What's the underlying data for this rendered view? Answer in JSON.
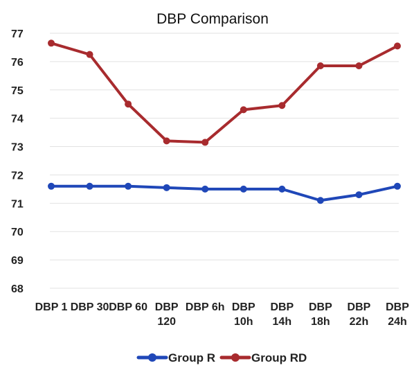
{
  "chart_data": {
    "type": "line",
    "title": "DBP Comparison",
    "xlabel": "",
    "ylabel": "",
    "ylim": [
      68,
      77
    ],
    "yticks": [
      68,
      69,
      70,
      71,
      72,
      73,
      74,
      75,
      76,
      77
    ],
    "grid": true,
    "legend_position": "bottom",
    "categories": [
      [
        "DBP 1"
      ],
      [
        "DBP 30"
      ],
      [
        "DBP 60"
      ],
      [
        "DBP",
        "120"
      ],
      [
        "DBP 6h"
      ],
      [
        "DBP",
        "10h"
      ],
      [
        "DBP",
        "14h"
      ],
      [
        "DBP",
        "18h"
      ],
      [
        "DBP",
        "22h"
      ],
      [
        "DBP",
        "24h"
      ]
    ],
    "series": [
      {
        "name": "Group R",
        "color": "#1f47b8",
        "values": [
          71.6,
          71.6,
          71.6,
          71.55,
          71.5,
          71.5,
          71.5,
          71.1,
          71.3,
          71.6
        ]
      },
      {
        "name": "Group RD",
        "color": "#a82b2e",
        "values": [
          76.65,
          76.25,
          74.5,
          73.2,
          73.15,
          74.3,
          74.45,
          75.85,
          75.85,
          76.55
        ]
      }
    ]
  }
}
